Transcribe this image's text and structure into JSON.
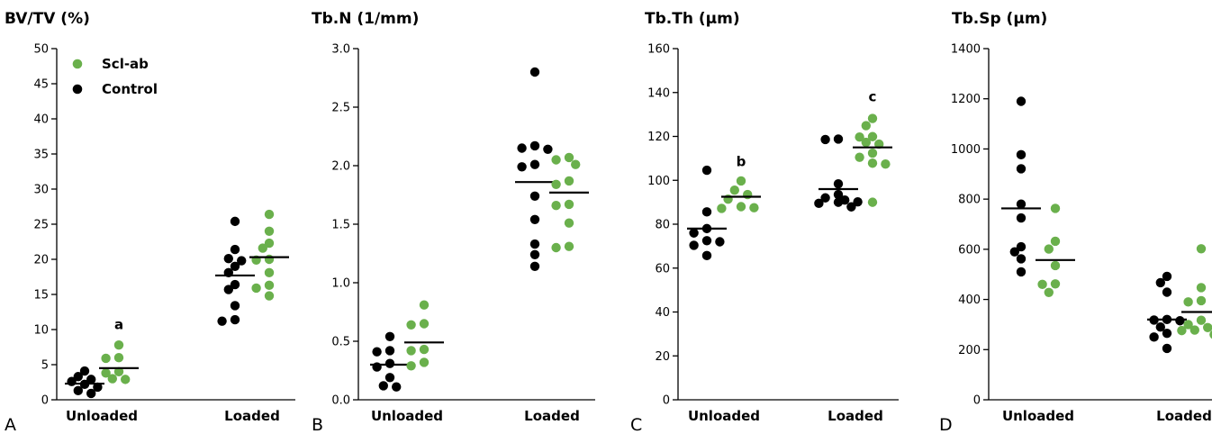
{
  "colors": {
    "control": "#000000",
    "scl_ab": "#6ab04c"
  },
  "legend": {
    "position": "top-left",
    "entries": [
      {
        "label": "Scl-ab",
        "color": "#6ab04c"
      },
      {
        "label": "Control",
        "color": "#000000"
      }
    ]
  },
  "chart_data": [
    {
      "type": "scatter",
      "panel": "A",
      "title": "BV/TV (%)",
      "categories": [
        "Unloaded",
        "Loaded"
      ],
      "ylim": [
        0,
        50
      ],
      "yticks": [
        0,
        5,
        10,
        15,
        20,
        25,
        30,
        35,
        40,
        45,
        50
      ],
      "tick_labels": [
        "0",
        "5",
        "10",
        "15",
        "20",
        "25",
        "30",
        "35",
        "40",
        "45",
        "50"
      ],
      "series": [
        {
          "name": "Control",
          "color": "#000000",
          "groups": [
            {
              "category": "Unloaded",
              "values": [
                4.1,
                3.3,
                2.9,
                2.6,
                2.2,
                1.8,
                1.3,
                0.9
              ],
              "mean": 2.3
            },
            {
              "category": "Loaded",
              "values": [
                25.4,
                21.4,
                20.1,
                19.8,
                19.0,
                18.1,
                16.4,
                15.7,
                13.4,
                11.4,
                11.2
              ],
              "mean": 17.7
            }
          ]
        },
        {
          "name": "Scl-ab",
          "color": "#6ab04c",
          "groups": [
            {
              "category": "Unloaded",
              "values": [
                7.8,
                6.0,
                5.9,
                4.0,
                3.8,
                3.0,
                2.9
              ],
              "mean": 4.5
            },
            {
              "category": "Loaded",
              "values": [
                26.4,
                24.0,
                22.3,
                21.6,
                20.0,
                19.9,
                18.1,
                16.3,
                15.9,
                14.8
              ],
              "mean": 20.3
            }
          ]
        }
      ],
      "annotations": [
        {
          "text": "a",
          "category": "Unloaded",
          "series": "Scl-ab",
          "y": 10.7
        }
      ]
    },
    {
      "type": "scatter",
      "panel": "B",
      "title": "Tb.N (1/mm)",
      "categories": [
        "Unloaded",
        "Loaded"
      ],
      "ylim": [
        0,
        3.0
      ],
      "yticks": [
        0,
        0.5,
        1.0,
        1.5,
        2.0,
        2.5,
        3.0
      ],
      "tick_labels": [
        "0.0",
        "0.5",
        "1.0",
        "1.5",
        "2.0",
        "2.5",
        "3.0"
      ],
      "series": [
        {
          "name": "Control",
          "color": "#000000",
          "groups": [
            {
              "category": "Unloaded",
              "values": [
                0.54,
                0.42,
                0.41,
                0.31,
                0.28,
                0.19,
                0.12,
                0.11
              ],
              "mean": 0.3
            },
            {
              "category": "Loaded",
              "values": [
                2.8,
                2.17,
                2.15,
                2.14,
                2.01,
                1.99,
                1.74,
                1.54,
                1.33,
                1.24,
                1.14
              ],
              "mean": 1.86
            }
          ]
        },
        {
          "name": "Scl-ab",
          "color": "#6ab04c",
          "groups": [
            {
              "category": "Unloaded",
              "values": [
                0.81,
                0.65,
                0.64,
                0.43,
                0.42,
                0.32,
                0.29
              ],
              "mean": 0.49
            },
            {
              "category": "Loaded",
              "values": [
                2.07,
                2.05,
                2.01,
                1.87,
                1.84,
                1.67,
                1.66,
                1.51,
                1.31,
                1.3
              ],
              "mean": 1.77
            }
          ]
        }
      ],
      "annotations": []
    },
    {
      "type": "scatter",
      "panel": "C",
      "title": "Tb.Th (µm)",
      "categories": [
        "Unloaded",
        "Loaded"
      ],
      "ylim": [
        0,
        160
      ],
      "yticks": [
        0,
        20,
        40,
        60,
        80,
        100,
        120,
        140,
        160
      ],
      "tick_labels": [
        "0",
        "20",
        "40",
        "60",
        "80",
        "100",
        "120",
        "140",
        "160"
      ],
      "series": [
        {
          "name": "Control",
          "color": "#000000",
          "groups": [
            {
              "category": "Unloaded",
              "values": [
                104.6,
                85.6,
                78.0,
                76.0,
                72.5,
                72.0,
                70.4,
                65.7
              ],
              "mean": 78.0
            },
            {
              "category": "Loaded",
              "values": [
                118.8,
                118.6,
                98.4,
                93.5,
                92.0,
                91.0,
                90.2,
                90.0,
                89.5,
                87.9
              ],
              "mean": 96.0
            }
          ]
        },
        {
          "name": "Scl-ab",
          "color": "#6ab04c",
          "groups": [
            {
              "category": "Unloaded",
              "values": [
                99.7,
                95.5,
                93.5,
                91.4,
                88.0,
                87.5,
                87.2
              ],
              "mean": 92.5
            },
            {
              "category": "Loaded",
              "values": [
                128.2,
                124.9,
                119.9,
                119.7,
                117.3,
                116.5,
                112.4,
                110.5,
                107.8,
                107.4,
                90.0
              ],
              "mean": 115.0
            }
          ]
        }
      ],
      "annotations": [
        {
          "text": "b",
          "category": "Unloaded",
          "series": "Scl-ab",
          "y": 108.5
        },
        {
          "text": "c",
          "category": "Loaded",
          "series": "Scl-ab",
          "y": 138.0
        }
      ]
    },
    {
      "type": "scatter",
      "panel": "D",
      "title": "Tb.Sp (µm)",
      "categories": [
        "Unloaded",
        "Loaded"
      ],
      "ylim": [
        0,
        1400
      ],
      "yticks": [
        0,
        200,
        400,
        600,
        800,
        1000,
        1200,
        1400
      ],
      "tick_labels": [
        "0",
        "200",
        "400",
        "600",
        "800",
        "1000",
        "1200",
        "1400"
      ],
      "series": [
        {
          "name": "Control",
          "color": "#000000",
          "groups": [
            {
              "category": "Unloaded",
              "values": [
                1190,
                977,
                921,
                780,
                725,
                610,
                590,
                562,
                510
              ],
              "mean": 763
            },
            {
              "category": "Loaded",
              "values": [
                492,
                467,
                429,
                320,
                318,
                315,
                290,
                265,
                250,
                205
              ],
              "mean": 320
            }
          ]
        },
        {
          "name": "Scl-ab",
          "color": "#6ab04c",
          "groups": [
            {
              "category": "Unloaded",
              "values": [
                763,
                632,
                601,
                535,
                462,
                460,
                428
              ],
              "mean": 557
            },
            {
              "category": "Loaded",
              "values": [
                602,
                447,
                395,
                390,
                317,
                300,
                288,
                278,
                276,
                260
              ],
              "mean": 350
            }
          ]
        }
      ],
      "annotations": []
    }
  ],
  "panel_letters": [
    "A",
    "B",
    "C",
    "D"
  ]
}
